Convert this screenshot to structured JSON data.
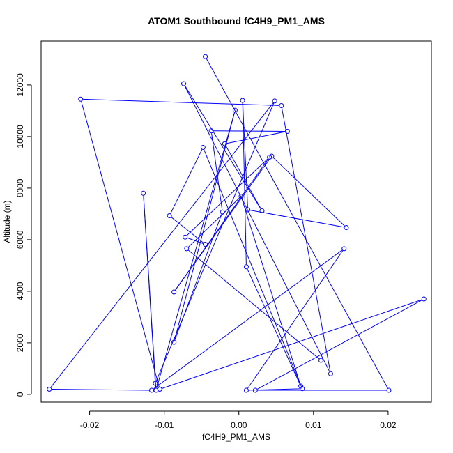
{
  "chart_data": {
    "type": "line",
    "title": "ATOM1 Southbound fC4H9_PM1_AMS",
    "xlabel": "fC4H9_PM1_AMS",
    "ylabel": "Altitude (m)",
    "xlim": [
      -0.0265,
      0.0258
    ],
    "ylim": [
      -300,
      13700
    ],
    "x_ticks": [
      -0.02,
      -0.01,
      0.0,
      0.01,
      0.02
    ],
    "x_tick_labels": [
      "-0.02",
      "-0.01",
      "0.00",
      "0.01",
      "0.02"
    ],
    "y_ticks": [
      0,
      2000,
      4000,
      6000,
      8000,
      10000,
      12000
    ],
    "y_tick_labels": [
      "0",
      "2000",
      "4000",
      "6000",
      "8000",
      "10000",
      "12000"
    ],
    "grid": false,
    "markers": "open circles",
    "series": [
      {
        "color": "#0000ff",
        "points": [
          {
            "x": -0.0045,
            "y": 13100
          },
          {
            "x": 0.0201,
            "y": 160
          },
          {
            "x": 0.0022,
            "y": 160
          },
          {
            "x": 0.0248,
            "y": 3700
          },
          {
            "x": -0.0106,
            "y": 200
          },
          {
            "x": -0.0212,
            "y": 11450
          },
          {
            "x": 0.0057,
            "y": 11200
          },
          {
            "x": 0.0123,
            "y": 800
          },
          {
            "x": -0.0074,
            "y": 12050
          },
          {
            "x": 0.0031,
            "y": 7120
          },
          {
            "x": -0.0019,
            "y": 9720
          },
          {
            "x": 0.0065,
            "y": 10200
          },
          {
            "x": -0.0037,
            "y": 10220
          },
          {
            "x": -0.0022,
            "y": 7070
          },
          {
            "x": -0.0087,
            "y": 2020
          },
          {
            "x": -0.0005,
            "y": 11020
          },
          {
            "x": -0.0111,
            "y": 160
          },
          {
            "x": -0.0128,
            "y": 7800
          },
          {
            "x": -0.0112,
            "y": 430
          },
          {
            "x": 0.0048,
            "y": 11380
          },
          {
            "x": -0.0254,
            "y": 200
          },
          {
            "x": -0.0117,
            "y": 160
          },
          {
            "x": 0.0141,
            "y": 5650
          },
          {
            "x": 0.001,
            "y": 160
          },
          {
            "x": 0.0085,
            "y": 220
          },
          {
            "x": -0.0048,
            "y": 9580
          },
          {
            "x": -0.0093,
            "y": 6930
          },
          {
            "x": -0.0045,
            "y": 5820
          },
          {
            "x": -0.0072,
            "y": 6100
          },
          {
            "x": 0.0041,
            "y": 9200
          },
          {
            "x": -0.0087,
            "y": 3970
          },
          {
            "x": 0.0044,
            "y": 9240
          },
          {
            "x": 0.0144,
            "y": 6470
          },
          {
            "x": 0.0012,
            "y": 7160
          },
          {
            "x": 0.0005,
            "y": 11400
          },
          {
            "x": 0.001,
            "y": 4950
          },
          {
            "x": 0.0083,
            "y": 320
          },
          {
            "x": 0.0003,
            "y": 7680
          },
          {
            "x": -0.007,
            "y": 5650
          },
          {
            "x": 0.011,
            "y": 1320
          }
        ]
      }
    ]
  }
}
